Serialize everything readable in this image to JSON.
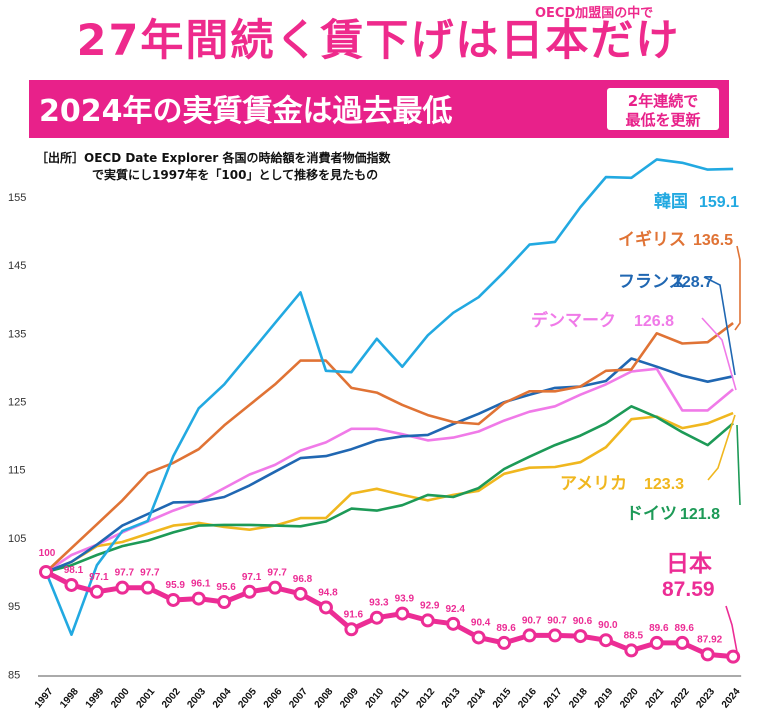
{
  "header": {
    "title": "27年間続く賃下げは日本だけ",
    "title_note": "OECD加盟国の中で",
    "subtitle": "2024年の実質賃金は過去最低",
    "badge_line1": "2年連続で",
    "badge_line2": "最低を更新"
  },
  "source": {
    "line1": "［出所］OECD Date Explorer 各国の時給額を消費者物価指数",
    "line2": "で実質にし1997年を「100」として推移を見たもの"
  },
  "colors": {
    "accent": "#e8218a",
    "korea": "#22a9e1",
    "uk": "#e07335",
    "france": "#2067b2",
    "denmark": "#f07ae8",
    "usa": "#f0b71f",
    "germany": "#1d9a57",
    "japan": "#ec2d95"
  },
  "chart_data": {
    "type": "line",
    "x": [
      1997,
      1998,
      1999,
      2000,
      2001,
      2002,
      2003,
      2004,
      2005,
      2006,
      2007,
      2008,
      2009,
      2010,
      2011,
      2012,
      2013,
      2014,
      2015,
      2016,
      2017,
      2018,
      2019,
      2020,
      2021,
      2022,
      2023,
      2024
    ],
    "ylim": [
      85,
      160
    ],
    "yticks": [
      85,
      95,
      105,
      115,
      125,
      135,
      145,
      155
    ],
    "series": [
      {
        "key": "korea",
        "name": "韓国",
        "label_value": "159.1",
        "color": "#22a9e1",
        "values": [
          100,
          90.8,
          101,
          106,
          107.5,
          117,
          124,
          127.5,
          132,
          136.5,
          141,
          129.5,
          129.3,
          134.2,
          130.1,
          134.7,
          138,
          140.3,
          144,
          148,
          148.4,
          153.5,
          157.9,
          157.8,
          160.5,
          160,
          159,
          159.1
        ]
      },
      {
        "key": "uk",
        "name": "イギリス",
        "label_value": "136.5",
        "color": "#e07335",
        "values": [
          100,
          103.5,
          107,
          110.5,
          114.5,
          116,
          118,
          121.5,
          124.5,
          127.5,
          131,
          131,
          127,
          126.3,
          124.5,
          123,
          122,
          121.7,
          124.8,
          126.5,
          126.5,
          127.2,
          129.5,
          129.7,
          135,
          133.5,
          133.7,
          136.5
        ]
      },
      {
        "key": "france",
        "name": "フランス",
        "label_value": "128.7",
        "color": "#2067b2",
        "values": [
          100,
          101.5,
          104,
          106.8,
          108.5,
          110.2,
          110.3,
          111,
          112.7,
          114.7,
          116.7,
          117,
          118,
          119.3,
          119.9,
          120.1,
          121.7,
          123.2,
          124.9,
          126,
          127,
          127.2,
          128,
          131.3,
          130.1,
          128.8,
          127.9,
          128.7
        ]
      },
      {
        "key": "denmark",
        "name": "デンマーク",
        "label_value": "126.8",
        "color": "#f07ae8",
        "values": [
          100,
          102.5,
          104,
          105.8,
          107.4,
          109,
          110.3,
          112.3,
          114.3,
          115.7,
          117.8,
          119,
          121,
          121,
          120.2,
          119.3,
          119.7,
          120.6,
          122.2,
          123.5,
          124.3,
          126,
          127.5,
          129.4,
          129.8,
          123.7,
          123.7,
          126.8
        ]
      },
      {
        "key": "usa",
        "name": "アメリカ",
        "label_value": "123.3",
        "color": "#f0b71f",
        "values": [
          100,
          101.5,
          103.8,
          104.4,
          105.6,
          106.8,
          107.2,
          106.6,
          106.2,
          106.8,
          107.9,
          107.9,
          111.5,
          112.2,
          111.3,
          110.5,
          111.3,
          111.9,
          114.4,
          115.3,
          115.4,
          116.1,
          118.3,
          122.4,
          122.8,
          121.1,
          121.8,
          123.3
        ]
      },
      {
        "key": "germany",
        "name": "ドイツ",
        "label_value": "121.8",
        "color": "#1d9a57",
        "values": [
          100,
          101,
          102.5,
          103.8,
          104.6,
          105.8,
          106.8,
          106.9,
          106.9,
          106.8,
          106.7,
          107.4,
          109.3,
          109,
          109.8,
          111.3,
          111,
          112.3,
          115.1,
          116.9,
          118.6,
          120,
          121.8,
          124.3,
          122.7,
          120.5,
          118.6,
          121.8
        ]
      },
      {
        "key": "japan",
        "name": "日本",
        "label_value": "87.59",
        "color": "#ec2d95",
        "values": [
          100,
          98.1,
          97.1,
          97.7,
          97.7,
          95.9,
          96.1,
          95.6,
          97.1,
          97.7,
          96.8,
          94.8,
          91.6,
          93.3,
          93.9,
          92.9,
          92.4,
          90.4,
          89.6,
          90.7,
          90.7,
          90.6,
          90.0,
          88.5,
          89.6,
          89.6,
          87.92,
          87.59
        ],
        "point_labels": [
          "100",
          "98.1",
          "97.1",
          "97.7",
          "97.7",
          "95.9",
          "96.1",
          "95.6",
          "97.1",
          "97.7",
          "96.8",
          "94.8",
          "91.6",
          "93.3",
          "93.9",
          "92.9",
          "92.4",
          "90.4",
          "89.6",
          "90.7",
          "90.7",
          "90.6",
          "90.0",
          "88.5",
          "89.6",
          "89.6",
          "87.92",
          ""
        ]
      }
    ]
  }
}
